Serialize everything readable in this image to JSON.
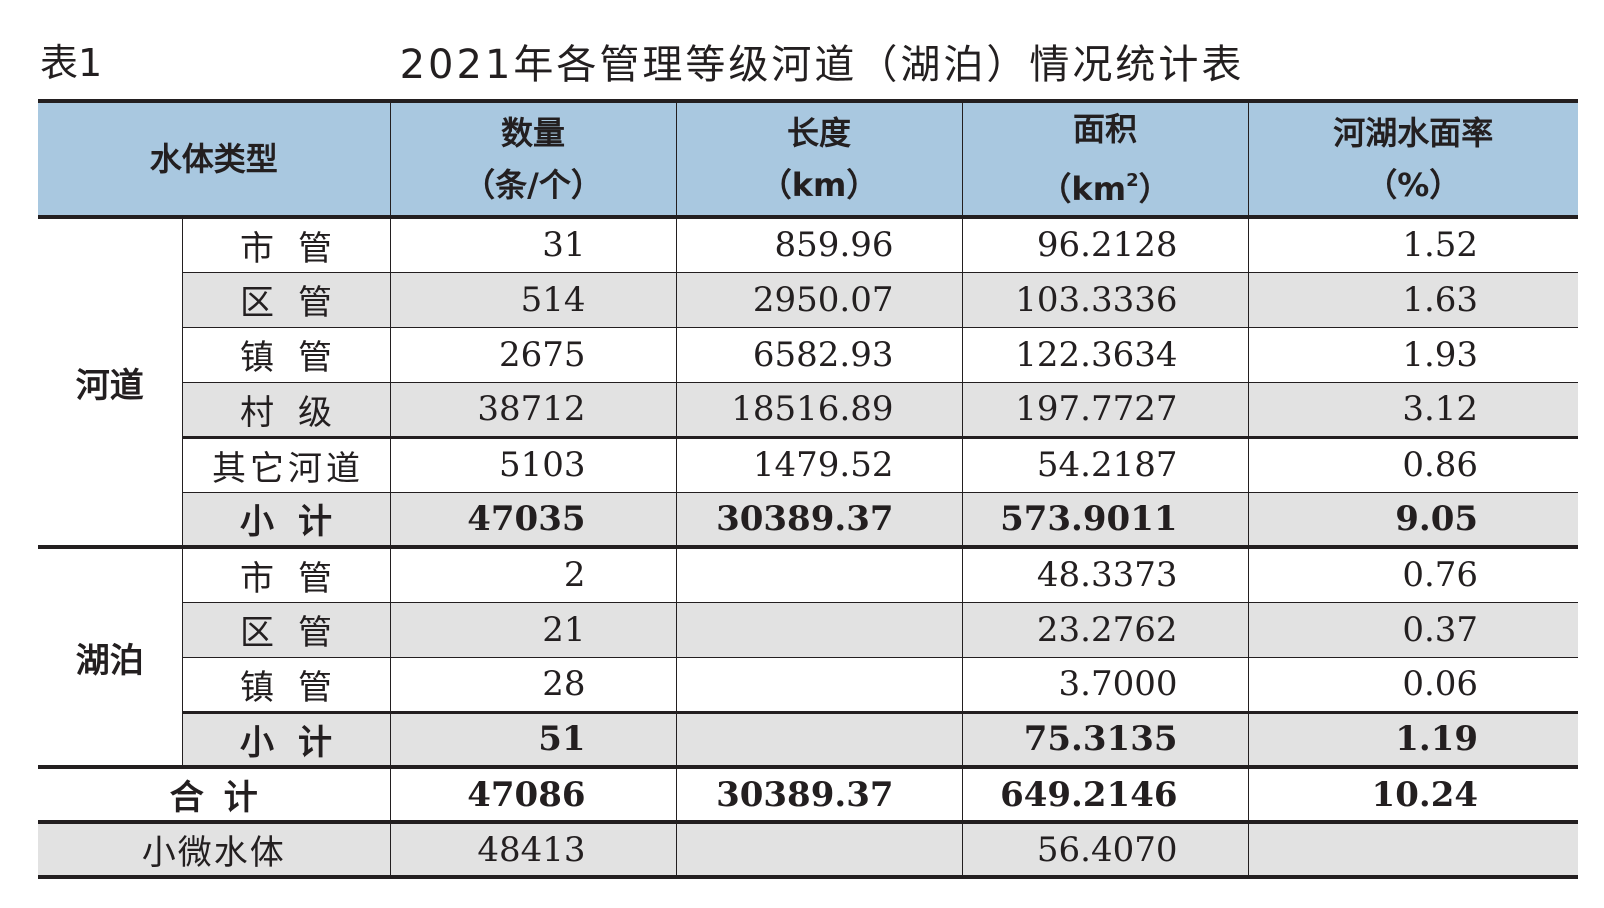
{
  "label": "表1",
  "title": "2021年各管理等级河道（湖泊）情况统计表",
  "headers": {
    "type": "水体类型",
    "count": [
      "数量",
      "（条/个）"
    ],
    "length": [
      "长度",
      "（km）"
    ],
    "area_name": "面积",
    "area_unit_pre": "（km",
    "area_unit_sup": "2",
    "area_unit_post": "）",
    "rate": [
      "河湖水面率",
      "（%）"
    ]
  },
  "groups": [
    {
      "name": "河道",
      "rows": [
        {
          "sub": "市管",
          "count": "31",
          "length": "859.96",
          "area": "96.2128",
          "rate": "1.52"
        },
        {
          "sub": "区管",
          "count": "514",
          "length": "2950.07",
          "area": "103.3336",
          "rate": "1.63"
        },
        {
          "sub": "镇管",
          "count": "2675",
          "length": "6582.93",
          "area": "122.3634",
          "rate": "1.93"
        },
        {
          "sub": "村级",
          "count": "38712",
          "length": "18516.89",
          "area": "197.7727",
          "rate": "3.12"
        },
        {
          "sub": "其它河道",
          "count": "5103",
          "length": "1479.52",
          "area": "54.2187",
          "rate": "0.86"
        },
        {
          "sub": "小计",
          "count": "47035",
          "length": "30389.37",
          "area": "573.9011",
          "rate": "9.05"
        }
      ]
    },
    {
      "name": "湖泊",
      "rows": [
        {
          "sub": "市管",
          "count": "2",
          "length": "",
          "area": "48.3373",
          "rate": "0.76"
        },
        {
          "sub": "区管",
          "count": "21",
          "length": "",
          "area": "23.2762",
          "rate": "0.37"
        },
        {
          "sub": "镇管",
          "count": "28",
          "length": "",
          "area": "3.7000",
          "rate": "0.06"
        },
        {
          "sub": "小计",
          "count": "51",
          "length": "",
          "area": "75.3135",
          "rate": "1.19"
        }
      ]
    }
  ],
  "total": {
    "label": "合计",
    "count": "47086",
    "length": "30389.37",
    "area": "649.2146",
    "rate": "10.24"
  },
  "micro": {
    "label": "小微水体",
    "count": "48413",
    "length": "",
    "area": "56.4070",
    "rate": ""
  }
}
